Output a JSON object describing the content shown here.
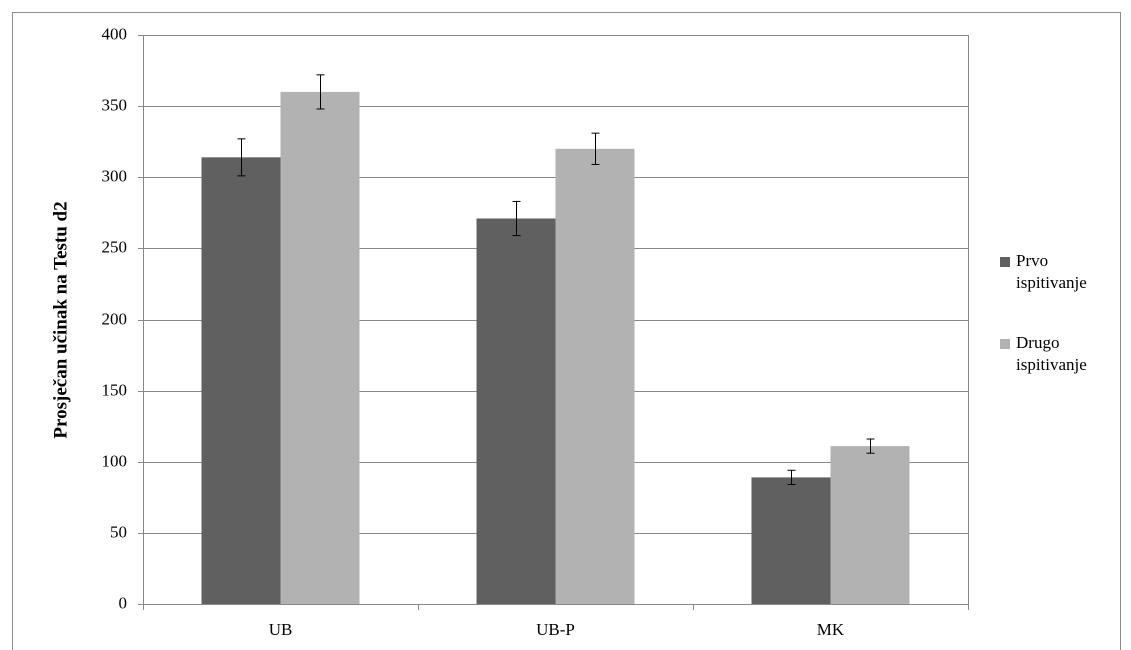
{
  "chart_data": {
    "type": "bar",
    "y_label": "Prosječan učinak na Testu d2",
    "categories": [
      "UB",
      "UB-P",
      "MK"
    ],
    "series": [
      {
        "name": "Prvo ispitivanje",
        "color": "#606060",
        "values": [
          314,
          271,
          89
        ],
        "errors": [
          13,
          12,
          5
        ]
      },
      {
        "name": "Drugo ispitivanje",
        "color": "#b2b2b2",
        "values": [
          360,
          320,
          111
        ],
        "errors": [
          12,
          11,
          5
        ]
      }
    ],
    "ylim": [
      0,
      400
    ],
    "yticks": [
      0,
      50,
      100,
      150,
      200,
      250,
      300,
      350,
      400
    ],
    "grid": true,
    "legend": "right"
  }
}
